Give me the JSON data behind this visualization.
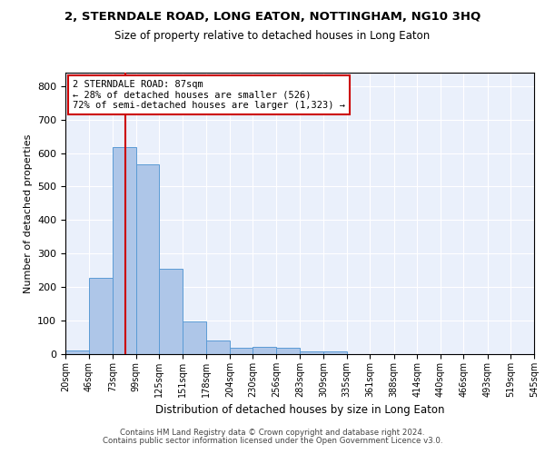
{
  "title": "2, STERNDALE ROAD, LONG EATON, NOTTINGHAM, NG10 3HQ",
  "subtitle": "Size of property relative to detached houses in Long Eaton",
  "xlabel": "Distribution of detached houses by size in Long Eaton",
  "ylabel": "Number of detached properties",
  "bar_color": "#aec6e8",
  "bar_edge_color": "#5b9bd5",
  "background_color": "#eaf0fb",
  "grid_color": "#ffffff",
  "vline_color": "#cc0000",
  "vline_x": 87,
  "annotation_line1": "2 STERNDALE ROAD: 87sqm",
  "annotation_line2": "← 28% of detached houses are smaller (526)",
  "annotation_line3": "72% of semi-detached houses are larger (1,323) →",
  "bin_edges": [
    20,
    46,
    73,
    99,
    125,
    151,
    178,
    204,
    230,
    256,
    283,
    309,
    335,
    361,
    388,
    414,
    440,
    466,
    493,
    519,
    545
  ],
  "bar_heights": [
    10,
    228,
    617,
    567,
    254,
    97,
    42,
    20,
    21,
    20,
    9,
    7,
    0,
    0,
    0,
    0,
    0,
    0,
    0,
    0
  ],
  "ylim": [
    0,
    840
  ],
  "yticks": [
    0,
    100,
    200,
    300,
    400,
    500,
    600,
    700,
    800
  ],
  "footnote1": "Contains HM Land Registry data © Crown copyright and database right 2024.",
  "footnote2": "Contains public sector information licensed under the Open Government Licence v3.0."
}
